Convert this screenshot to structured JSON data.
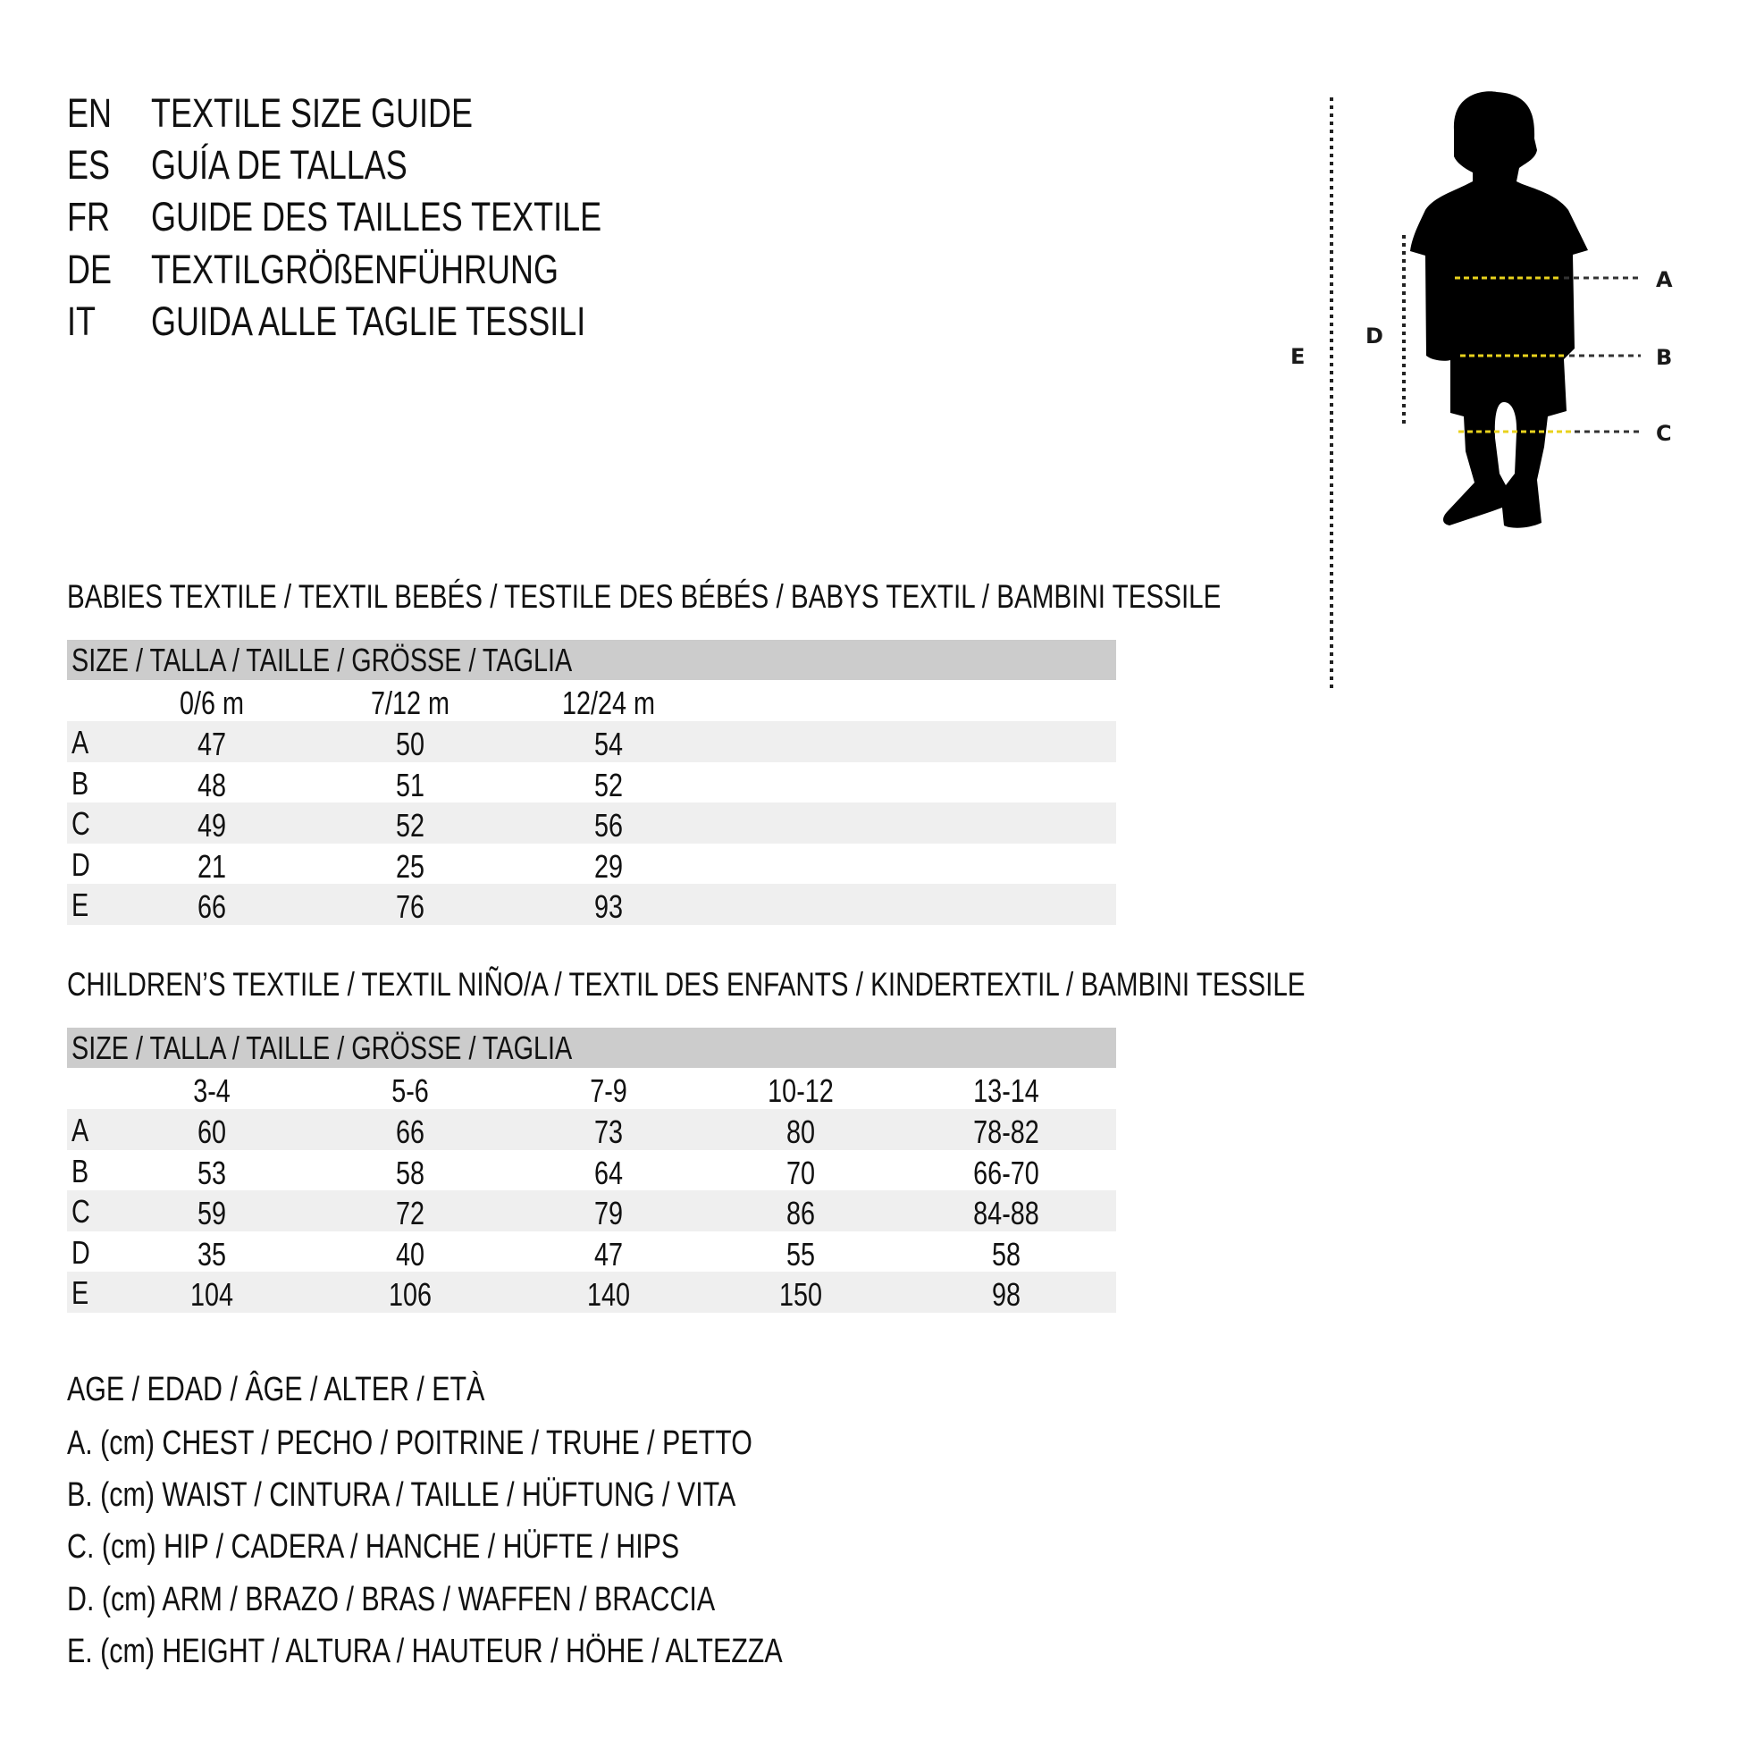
{
  "titles": [
    {
      "code": "EN",
      "text": "TEXTILE SIZE GUIDE"
    },
    {
      "code": "ES",
      "text": "GUÍA DE TALLAS"
    },
    {
      "code": "FR",
      "text": "GUIDE DES TAILLES TEXTILE"
    },
    {
      "code": "DE",
      "text": "TEXTILGRÖßENFÜHRUNG"
    },
    {
      "code": "IT",
      "text": "GUIDA ALLE TAGLIE TESSILI"
    }
  ],
  "babies": {
    "heading": "BABIES TEXTILE / TEXTIL BEBÉS / TESTILE DES BÉBÉS / BABYS TEXTIL / BAMBINI TESSILE",
    "size_header": "SIZE / TALLA / TAILLE / GRÖSSE / TAGLIA",
    "columns": [
      "0/6 m",
      "7/12 m",
      "12/24 m"
    ],
    "rows": [
      {
        "label": "A",
        "values": [
          "47",
          "50",
          "54"
        ]
      },
      {
        "label": "B",
        "values": [
          "48",
          "51",
          "52"
        ]
      },
      {
        "label": "C",
        "values": [
          "49",
          "52",
          "56"
        ]
      },
      {
        "label": "D",
        "values": [
          "21",
          "25",
          "29"
        ]
      },
      {
        "label": "E",
        "values": [
          "66",
          "76",
          "93"
        ]
      }
    ]
  },
  "children": {
    "heading": "CHILDREN’S TEXTILE / TEXTIL NIÑO/A / TEXTIL DES ENFANTS / KINDERTEXTIL / BAMBINI TESSILE",
    "size_header": "SIZE / TALLA / TAILLE / GRÖSSE / TAGLIA",
    "columns": [
      "3-4",
      "5-6",
      "7-9",
      "10-12",
      "13-14"
    ],
    "rows": [
      {
        "label": "A",
        "values": [
          "60",
          "66",
          "73",
          "80",
          "78-82"
        ]
      },
      {
        "label": "B",
        "values": [
          "53",
          "58",
          "64",
          "70",
          "66-70"
        ]
      },
      {
        "label": "C",
        "values": [
          "59",
          "72",
          "79",
          "86",
          "84-88"
        ]
      },
      {
        "label": "D",
        "values": [
          "35",
          "40",
          "47",
          "55",
          "58"
        ]
      },
      {
        "label": "E",
        "values": [
          "104",
          "106",
          "140",
          "150",
          "98"
        ]
      }
    ]
  },
  "legend": [
    "AGE / EDAD / ÂGE / ALTER / ETÀ",
    "A. (cm) CHEST / PECHO / POITRINE / TRUHE / PETTO",
    "B. (cm) WAIST / CINTURA / TAILLE / HÜFTUNG / VITA",
    "C. (cm) HIP / CADERA / HANCHE / HÜFTE / HIPS",
    "D. (cm) ARM / BRAZO / BRAS / WAFFEN / BRACCIA",
    "E. (cm) HEIGHT / ALTURA / HAUTEUR / HÖHE / ALTEZZA"
  ],
  "figure": {
    "labels": {
      "A": "A",
      "B": "B",
      "C": "C",
      "D": "D",
      "E": "E"
    },
    "colors": {
      "silhouette": "#000000",
      "measure_inside": "#e8d21d",
      "measure_outside": "#333333",
      "table_header": "#cccccc",
      "row_shade": "#efefef"
    }
  }
}
